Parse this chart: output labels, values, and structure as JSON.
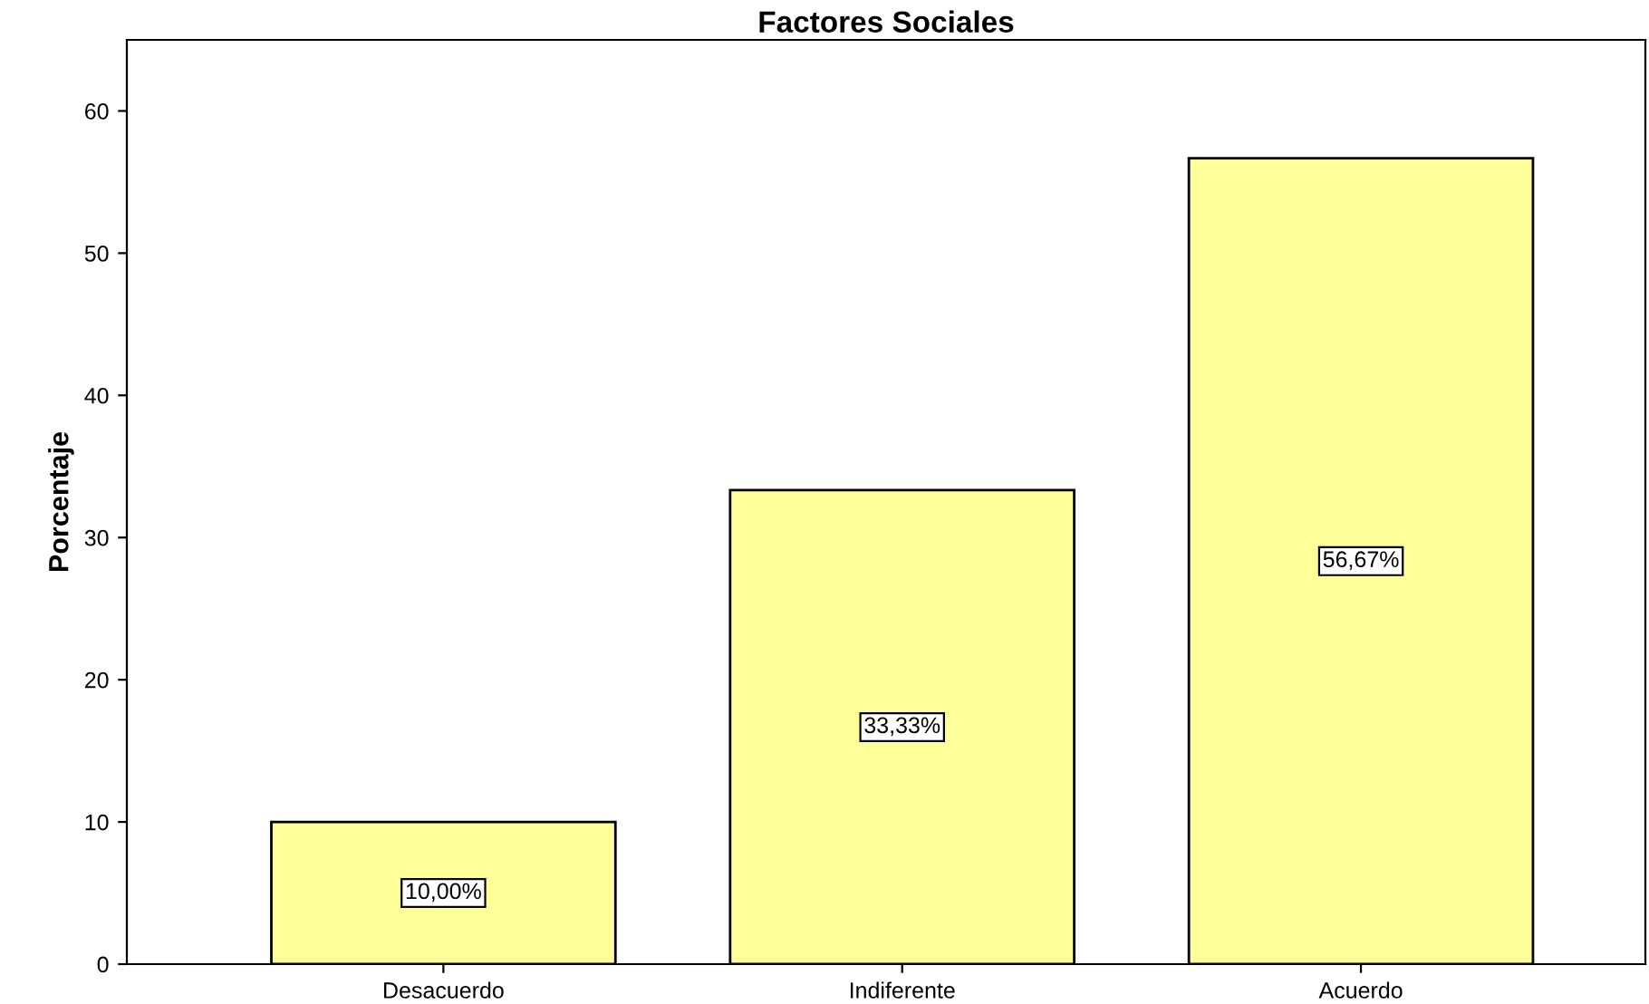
{
  "chart_data": {
    "type": "bar",
    "title": "Factores Sociales",
    "ylabel": "Porcentaje",
    "categories": [
      "Desacuerdo",
      "Indiferente",
      "Acuerdo"
    ],
    "values": [
      10.0,
      33.33,
      56.67
    ],
    "value_labels": [
      "10,00%",
      "33,33%",
      "56,67%"
    ],
    "color": "#ffff99",
    "ylim": [
      0,
      65
    ],
    "yticks": [
      0,
      10,
      20,
      30,
      40,
      50,
      60
    ],
    "grid": false,
    "legend": false
  }
}
